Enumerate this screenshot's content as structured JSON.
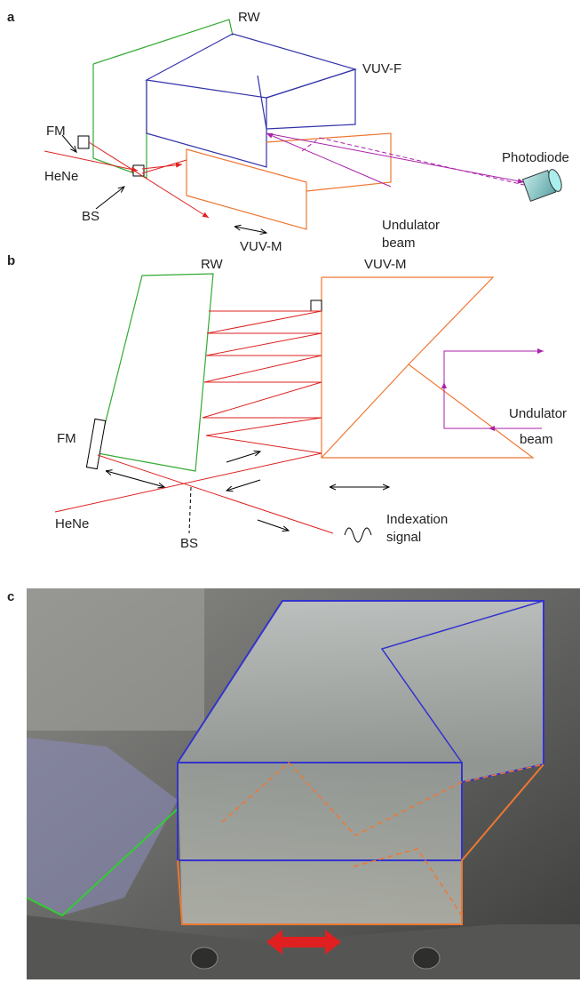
{
  "panels": [
    {
      "label": "a",
      "labels": [
        "RW",
        "VUV-F",
        "FM",
        "HeNe",
        "BS",
        "Photodiode",
        "VUV-M",
        "Undulator",
        "beam"
      ]
    },
    {
      "label": "b",
      "labels": [
        "RW",
        "VUV-M",
        "FM",
        "HeNe",
        "BS",
        "Undulator",
        "beam",
        "Indexation",
        "signal"
      ]
    },
    {
      "label": "c",
      "labels": []
    }
  ]
}
